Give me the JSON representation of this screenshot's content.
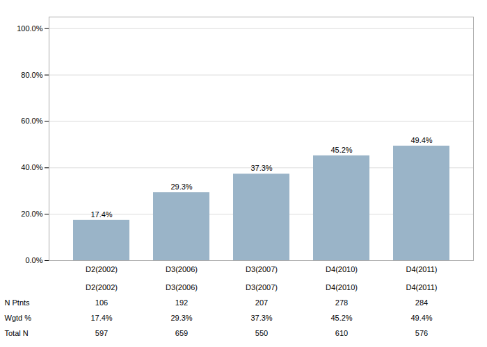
{
  "chart_data": {
    "type": "bar",
    "categories": [
      "D2(2002)",
      "D3(2006)",
      "D3(2007)",
      "D4(2010)",
      "D4(2011)"
    ],
    "values": [
      17.4,
      29.3,
      37.3,
      45.2,
      49.4
    ],
    "value_labels": [
      "17.4%",
      "29.3%",
      "37.3%",
      "45.2%",
      "49.4%"
    ],
    "data_labels": true,
    "color": "#9ab4c8",
    "ylim": [
      0,
      105
    ],
    "yticks": [
      {
        "value": 0,
        "label": "0.0%"
      },
      {
        "value": 20,
        "label": "20.0%"
      },
      {
        "value": 40,
        "label": "40.0%"
      },
      {
        "value": 60,
        "label": "60.0%"
      },
      {
        "value": 80,
        "label": "80.0%"
      },
      {
        "value": 100,
        "label": "100.0%"
      }
    ],
    "grid": true,
    "table": {
      "rows": [
        {
          "label": "N Ptnts",
          "values": [
            106,
            192,
            207,
            278,
            284
          ]
        },
        {
          "label": "Wgtd %",
          "values": [
            17.4,
            29.3,
            37.3,
            45.2,
            49.4
          ],
          "value_labels": [
            "17.4%",
            "29.3%",
            "37.3%",
            "45.2%",
            "49.4%"
          ]
        },
        {
          "label": "Total N",
          "values": [
            597,
            659,
            550,
            610,
            576
          ]
        }
      ]
    }
  }
}
